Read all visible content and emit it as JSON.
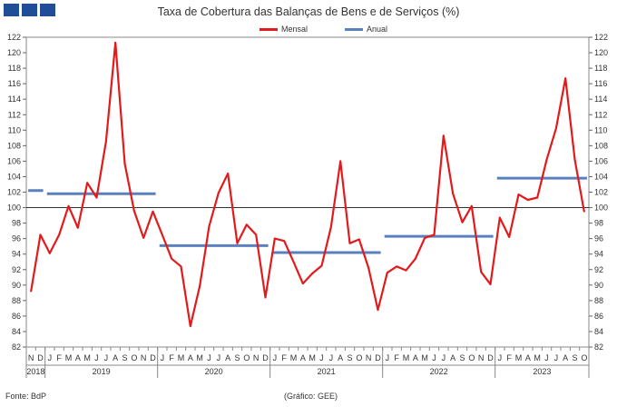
{
  "title": "Taxa de Cobertura das Balanças de Bens e de Serviços (%)",
  "footer": {
    "source": "Fonte: BdP",
    "credit": "(Gráfico: GEE)"
  },
  "colors": {
    "mensal": "#e31a1c",
    "anual": "#5b80bd",
    "refline": "#333333",
    "logo": "#1f4e96"
  },
  "chart_data": {
    "type": "line",
    "title": "Taxa de Cobertura das Balanças de Bens e de Serviços (%)",
    "ylim": [
      82,
      122
    ],
    "yticks": [
      82,
      84,
      86,
      88,
      90,
      92,
      94,
      96,
      98,
      100,
      102,
      104,
      106,
      108,
      110,
      112,
      114,
      116,
      118,
      120,
      122
    ],
    "reference_line": 100,
    "legend_position": "top-center",
    "month_labels": [
      "N",
      "D",
      "J",
      "F",
      "M",
      "A",
      "M",
      "J",
      "J",
      "A",
      "S",
      "O",
      "N",
      "D",
      "J",
      "F",
      "M",
      "A",
      "M",
      "J",
      "J",
      "A",
      "S",
      "O",
      "N",
      "D",
      "J",
      "F",
      "M",
      "A",
      "M",
      "J",
      "J",
      "A",
      "S",
      "O",
      "N",
      "D",
      "J",
      "F",
      "M",
      "A",
      "M",
      "J",
      "J",
      "A",
      "S",
      "O",
      "N",
      "D",
      "J",
      "F",
      "M",
      "A",
      "M",
      "J",
      "J",
      "A",
      "S",
      "O"
    ],
    "x": [
      "2018-11",
      "2018-12",
      "2019-01",
      "2019-02",
      "2019-03",
      "2019-04",
      "2019-05",
      "2019-06",
      "2019-07",
      "2019-08",
      "2019-09",
      "2019-10",
      "2019-11",
      "2019-12",
      "2020-01",
      "2020-02",
      "2020-03",
      "2020-04",
      "2020-05",
      "2020-06",
      "2020-07",
      "2020-08",
      "2020-09",
      "2020-10",
      "2020-11",
      "2020-12",
      "2021-01",
      "2021-02",
      "2021-03",
      "2021-04",
      "2021-05",
      "2021-06",
      "2021-07",
      "2021-08",
      "2021-09",
      "2021-10",
      "2021-11",
      "2021-12",
      "2022-01",
      "2022-02",
      "2022-03",
      "2022-04",
      "2022-05",
      "2022-06",
      "2022-07",
      "2022-08",
      "2022-09",
      "2022-10",
      "2022-11",
      "2022-12",
      "2023-01",
      "2023-02",
      "2023-03",
      "2023-04",
      "2023-05",
      "2023-06",
      "2023-07",
      "2023-08",
      "2023-09",
      "2023-10"
    ],
    "year_groups": [
      {
        "label": "2018",
        "count": 2
      },
      {
        "label": "2019",
        "count": 12
      },
      {
        "label": "2020",
        "count": 12
      },
      {
        "label": "2021",
        "count": 12
      },
      {
        "label": "2022",
        "count": 12
      },
      {
        "label": "2023",
        "count": 10
      }
    ],
    "series": [
      {
        "name": "Mensal",
        "type": "line",
        "values": [
          89.2,
          96.5,
          94.1,
          96.5,
          100.2,
          97.4,
          103.2,
          101.3,
          108.5,
          121.3,
          105.7,
          99.6,
          96.1,
          99.5,
          96.5,
          93.4,
          92.4,
          84.7,
          89.9,
          97.6,
          101.9,
          104.4,
          95.4,
          97.8,
          96.5,
          88.4,
          96.0,
          95.7,
          93.0,
          90.2,
          91.5,
          92.5,
          97.5,
          106.0,
          95.4,
          95.9,
          92.2,
          86.8,
          91.6,
          92.4,
          91.9,
          93.4,
          96.1,
          96.5,
          109.3,
          101.8,
          98.1,
          100.2,
          91.7,
          90.1,
          98.7,
          96.2,
          101.7,
          101.0,
          101.3,
          106.2,
          110.2,
          116.7,
          106.2,
          99.5
        ]
      },
      {
        "name": "Anual",
        "type": "step",
        "segments": [
          {
            "year": "2018",
            "value": 102.2
          },
          {
            "year": "2019",
            "value": 101.8
          },
          {
            "year": "2020",
            "value": 95.1
          },
          {
            "year": "2021",
            "value": 94.2
          },
          {
            "year": "2022",
            "value": 96.3
          },
          {
            "year": "2023",
            "value": 103.8
          }
        ]
      }
    ]
  }
}
